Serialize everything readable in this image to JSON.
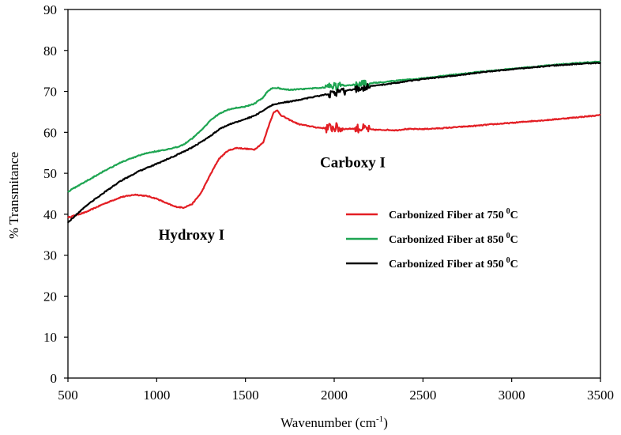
{
  "chart_data": {
    "type": "line",
    "title": "",
    "xlabel": "Wavenumber (cm",
    "xlabel_sup": "-1",
    "xlabel_end": ")",
    "ylabel": "% Transmitance",
    "xlim": [
      500,
      3500
    ],
    "ylim": [
      0,
      90
    ],
    "x_ticks": [
      500,
      1000,
      1500,
      2000,
      2500,
      3000,
      3500
    ],
    "y_ticks": [
      0,
      10,
      20,
      30,
      40,
      50,
      60,
      70,
      80,
      90
    ],
    "grid": false,
    "legend_position": "right-middle",
    "series": [
      {
        "name": "Carbonized Fiber at 750",
        "name_sup": "0",
        "name_end": "C",
        "color": "#e31e24",
        "x": [
          500,
          600,
          700,
          800,
          880,
          950,
          1000,
          1050,
          1100,
          1150,
          1200,
          1250,
          1300,
          1350,
          1400,
          1450,
          1500,
          1550,
          1600,
          1630,
          1660,
          1680,
          1700,
          1750,
          1800,
          1850,
          1900,
          1950,
          2000,
          2050,
          2100,
          2150,
          2200,
          2250,
          2300,
          2350,
          2400,
          2500,
          2600,
          2700,
          2800,
          2900,
          3000,
          3100,
          3200,
          3300,
          3400,
          3500
        ],
        "y": [
          39.2,
          40.5,
          42.5,
          44.2,
          44.8,
          44.4,
          43.8,
          42.8,
          41.9,
          41.6,
          42.5,
          45.2,
          49.5,
          53.5,
          55.5,
          56.2,
          56.0,
          55.8,
          57.5,
          61.5,
          65.0,
          65.3,
          64.2,
          63.0,
          62.0,
          61.6,
          61.2,
          61.0,
          61.2,
          60.8,
          60.9,
          61.0,
          60.7,
          60.6,
          60.6,
          60.5,
          60.8,
          60.8,
          61.0,
          61.3,
          61.6,
          62.0,
          62.3,
          62.7,
          63.0,
          63.4,
          63.8,
          64.2
        ],
        "noise": [
          {
            "from": 1950,
            "to": 2050,
            "amplitude": 1.2
          },
          {
            "from": 2120,
            "to": 2200,
            "amplitude": 1.1
          }
        ]
      },
      {
        "name": "Carbonized Fiber at 850",
        "name_sup": "0",
        "name_end": "C",
        "color": "#1ea552",
        "x": [
          500,
          550,
          600,
          700,
          800,
          900,
          950,
          1000,
          1050,
          1100,
          1150,
          1200,
          1250,
          1300,
          1350,
          1400,
          1450,
          1500,
          1550,
          1600,
          1620,
          1650,
          1680,
          1700,
          1750,
          1800,
          1900,
          2000,
          2100,
          2200,
          2300,
          2400,
          2500,
          2600,
          2700,
          2800,
          2900,
          3000,
          3100,
          3200,
          3300,
          3400,
          3500
        ],
        "y": [
          45.5,
          46.8,
          48.0,
          50.5,
          52.7,
          54.3,
          55.0,
          55.4,
          55.7,
          56.2,
          57.0,
          58.5,
          60.5,
          62.8,
          64.5,
          65.5,
          66.0,
          66.3,
          67.0,
          68.5,
          69.8,
          70.8,
          70.9,
          70.6,
          70.4,
          70.5,
          70.8,
          71.2,
          71.6,
          72.0,
          72.4,
          72.8,
          73.2,
          73.7,
          74.2,
          74.7,
          75.1,
          75.5,
          75.9,
          76.3,
          76.7,
          77.0,
          77.3
        ],
        "noise": [
          {
            "from": 1950,
            "to": 2050,
            "amplitude": 0.9
          },
          {
            "from": 2120,
            "to": 2200,
            "amplitude": 0.8
          }
        ]
      },
      {
        "name": "Carbonized Fiber at 950",
        "name_sup": "0",
        "name_end": "C",
        "color": "#000000",
        "x": [
          500,
          600,
          700,
          800,
          900,
          1000,
          1100,
          1200,
          1300,
          1350,
          1400,
          1450,
          1500,
          1550,
          1600,
          1650,
          1700,
          1750,
          1800,
          1900,
          2000,
          2100,
          2200,
          2300,
          2400,
          2500,
          2600,
          2700,
          2800,
          2900,
          3000,
          3100,
          3200,
          3300,
          3400,
          3500
        ],
        "y": [
          38.0,
          42.0,
          45.2,
          48.2,
          50.5,
          52.3,
          54.2,
          56.3,
          59.0,
          60.7,
          61.8,
          62.5,
          63.3,
          64.0,
          65.3,
          66.7,
          67.2,
          67.5,
          67.9,
          68.8,
          69.6,
          70.4,
          71.2,
          71.8,
          72.4,
          73.0,
          73.5,
          74.0,
          74.5,
          75.0,
          75.4,
          75.8,
          76.2,
          76.5,
          76.8,
          77.0
        ],
        "noise": [
          {
            "from": 1970,
            "to": 2060,
            "amplitude": 0.9
          },
          {
            "from": 2120,
            "to": 2200,
            "amplitude": 0.8
          }
        ]
      }
    ],
    "annotations": [
      {
        "text": "Hydroxy I",
        "x": 1010,
        "y": 33.8
      },
      {
        "text": "Carboxy I",
        "x": 1920,
        "y": 51.5
      }
    ]
  }
}
